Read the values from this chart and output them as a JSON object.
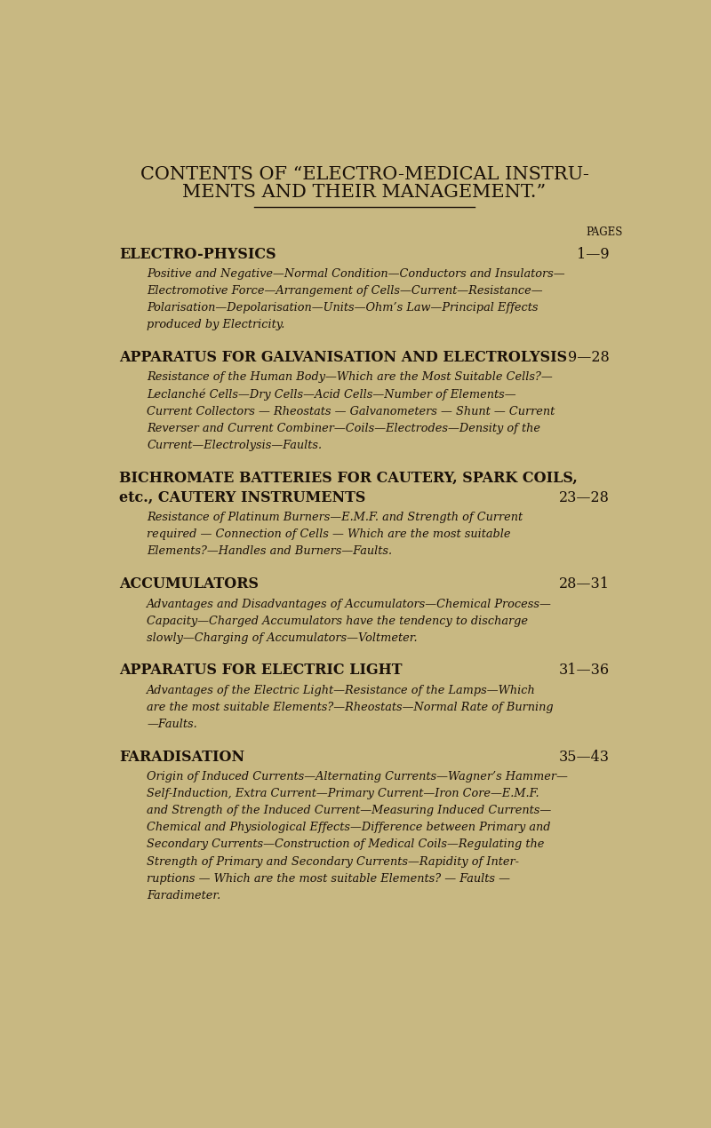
{
  "background_color": "#c8b882",
  "text_color": "#1a1008",
  "title_line1": "CONTENTS OF “ELECTRO-MEDICAL INSTRU-",
  "title_line2": "MENTS AND THEIR MANAGEMENT.”",
  "pages_label": "PAGES",
  "sections": [
    {
      "heading": "ELECTRO-PHYSICS",
      "heading2": "",
      "pages": "1—9",
      "body": "Positive and Negative—Normal Condition—Conductors and Insulators—\n    Electromotive Force—Arrangement of Cells—Current—Resistance—\n    Polarisation—Depolarisation—Units—Ohm’s Law—Principal Effects\n    produced by Electricity."
    },
    {
      "heading": "APPARATUS FOR GALVANISATION AND ELECTROLYSIS",
      "heading2": "",
      "pages": "9—28",
      "body": "Resistance of the Human Body—Which are the Most Suitable Cells?—\n    Leclanché Cells—Dry Cells—Acid Cells—Number of Elements—\n    Current Collectors — Rheostats — Galvanometers — Shunt — Current\n    Reverser and Current Combiner—Coils—Electrodes—Density of the\n    Current—Electrolysis—Faults."
    },
    {
      "heading": "BICHROMATE BATTERIES FOR CAUTERY, SPARK COILS,",
      "heading2": "        etc., CAUTERY INSTRUMENTS",
      "pages": "23—28",
      "body": "Resistance of Platinum Burners—E.M.F. and Strength of Current\n    required — Connection of Cells — Which are the most suitable\n    Elements?—Handles and Burners—Faults."
    },
    {
      "heading": "ACCUMULATORS",
      "heading2": "",
      "pages": "28—31",
      "body": "Advantages and Disadvantages of Accumulators—Chemical Process—\n    Capacity—Charged Accumulators have the tendency to discharge\n    slowly—Charging of Accumulators—Voltmeter."
    },
    {
      "heading": "APPARATUS FOR ELECTRIC LIGHT",
      "heading2": "",
      "pages": "31—36",
      "body": "Advantages of the Electric Light—Resistance of the Lamps—Which\n    are the most suitable Elements?—Rheostats—Normal Rate of Burning\n    —Faults."
    },
    {
      "heading": "FARADISATION",
      "heading2": "",
      "pages": "35—43",
      "body": "Origin of Induced Currents—Alternating Currents—Wagner’s Hammer—\n    Self-Induction, Extra Current—Primary Current—Iron Core—E.M.F.\n    and Strength of the Induced Current—Measuring Induced Currents—\n    Chemical and Physiological Effects—Difference between Primary and\n    Secondary Currents—Construction of Medical Coils—Regulating the\n    Strength of Primary and Secondary Currents—Rapidity of Inter-\n    ruptions — Which are the most suitable Elements? — Faults —\n    Faradimeter."
    }
  ]
}
